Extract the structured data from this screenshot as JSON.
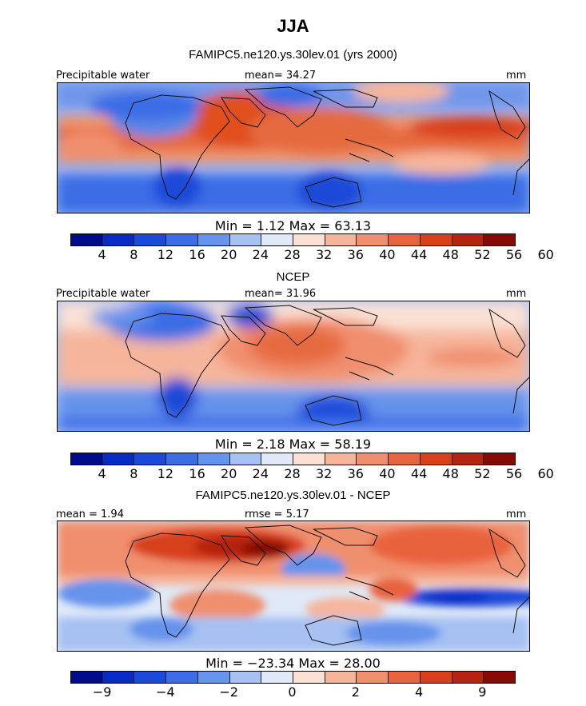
{
  "title": "JJA",
  "panels": [
    {
      "heading": "FAMIPC5.ne120.ys.30lev.01 (yrs 2000)",
      "left_label": "Precipitable water",
      "center_label": "mean=  34.27",
      "right_label": "mm",
      "minmax": "Min =    1.12 Max =   63.13",
      "kind": "field"
    },
    {
      "heading": "NCEP",
      "left_label": "Precipitable water",
      "center_label": "mean=  31.96",
      "right_label": "mm",
      "minmax": "Min =    2.18 Max =   58.19",
      "kind": "field"
    },
    {
      "heading": "FAMIPC5.ne120.ys.30lev.01 - NCEP",
      "left_label": "mean =   1.94",
      "center_label": "rmse =   5.17",
      "right_label": "mm",
      "minmax": "Min = −23.34 Max =  28.00",
      "kind": "diff"
    }
  ],
  "colorbar": {
    "colors": [
      "#000c8c",
      "#0a2ac4",
      "#1c4ad8",
      "#3a6de6",
      "#6693ec",
      "#a6c1f2",
      "#dfe9f8",
      "#fbe1d4",
      "#f6b59b",
      "#f08f6e",
      "#e8643e",
      "#d8401c",
      "#b52410",
      "#870a06"
    ],
    "field_ticks": [
      "4",
      "8",
      "12",
      "16",
      "20",
      "24",
      "28",
      "32",
      "36",
      "40",
      "44",
      "48",
      "52",
      "56",
      "60"
    ],
    "diff_ticks": [
      "−9",
      "−4",
      "−2",
      "0",
      "2",
      "4",
      "9"
    ]
  }
}
